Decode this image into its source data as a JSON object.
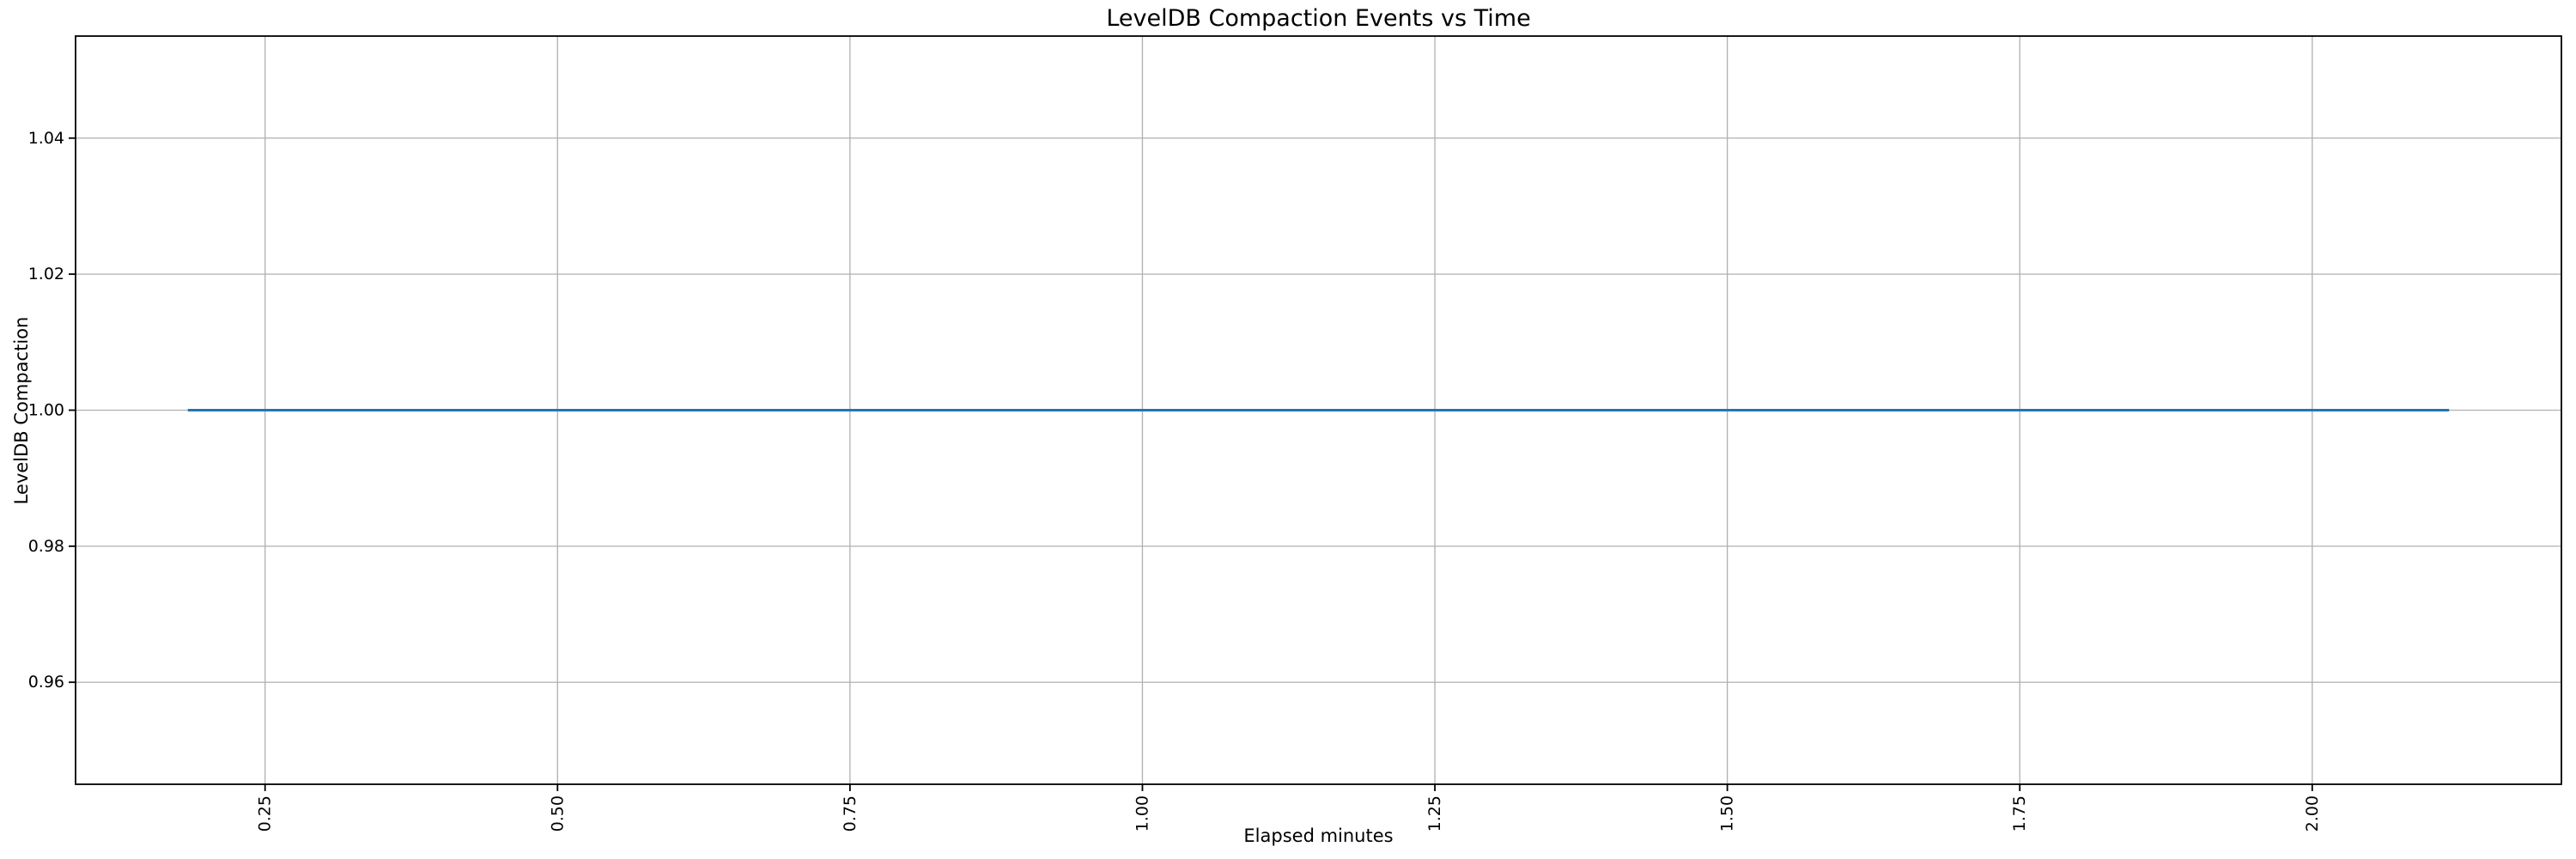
{
  "chart_data": {
    "type": "line",
    "title": "LevelDB Compaction Events vs Time",
    "xlabel": "Elapsed minutes",
    "ylabel": "LevelDB Compaction",
    "series": [
      {
        "name": "LevelDB Compaction",
        "x": [
          0.184,
          2.117
        ],
        "y": [
          1.0,
          1.0
        ],
        "color": "#1f77b4",
        "shape": "flat horizontal line at y = 1.0"
      }
    ],
    "xlim": [
      0.088,
      2.213
    ],
    "ylim": [
      0.945,
      1.055
    ],
    "xticks": {
      "values": [
        0.25,
        0.5,
        0.75,
        1.0,
        1.25,
        1.5,
        1.75,
        2.0
      ],
      "labels": [
        "0.25",
        "0.50",
        "0.75",
        "1.00",
        "1.25",
        "1.50",
        "1.75",
        "2.00"
      ],
      "rotation": 90
    },
    "yticks": {
      "values": [
        0.96,
        0.98,
        1.0,
        1.02,
        1.04
      ],
      "labels": [
        "0.96",
        "0.98",
        "1.00",
        "1.02",
        "1.04"
      ]
    },
    "grid": true,
    "legend": false,
    "colors": {
      "line": "#1f77b4",
      "grid": "#b0b0b0",
      "spine": "#000000",
      "text": "#000000",
      "background": "#ffffff"
    }
  }
}
